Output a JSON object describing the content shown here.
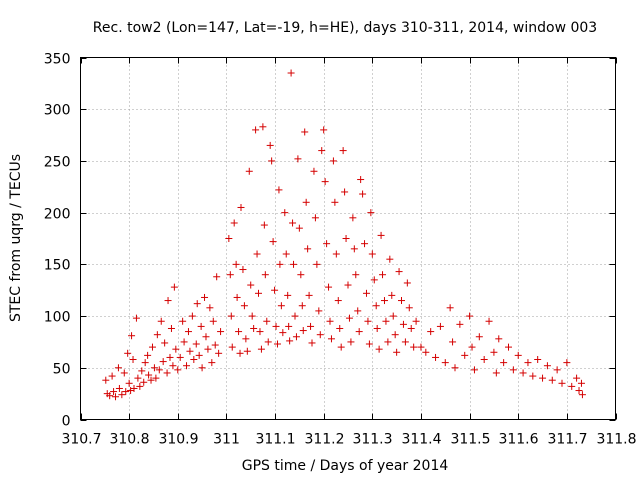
{
  "chart_data": {
    "type": "scatter",
    "title": "Rec. tow2 (Lon=147, Lat=-19, h=HE), days 310-311, 2014, window 003",
    "xlabel": "GPS time / Days of year 2014",
    "ylabel": "STEC from uqrg / TECUs",
    "xlim": [
      310.7,
      311.8
    ],
    "ylim": [
      0,
      350
    ],
    "xticks": [
      310.7,
      310.8,
      310.9,
      311.0,
      311.1,
      311.2,
      311.3,
      311.4,
      311.5,
      311.6,
      311.7,
      311.8
    ],
    "xtick_labels": [
      "310.7",
      "310.8",
      "310.9",
      "311",
      "311.1",
      "311.2",
      "311.3",
      "311.4",
      "311.5",
      "311.6",
      "311.7",
      "311.8"
    ],
    "yticks": [
      0,
      50,
      100,
      150,
      200,
      250,
      300,
      350
    ],
    "ytick_labels": [
      "0",
      "50",
      "100",
      "150",
      "200",
      "250",
      "300",
      "350"
    ],
    "grid": true,
    "marker": "+",
    "color": "#d40000",
    "series": [
      {
        "name": "STEC",
        "points": [
          [
            310.752,
            38
          ],
          [
            310.755,
            25
          ],
          [
            310.76,
            23
          ],
          [
            310.765,
            42
          ],
          [
            310.768,
            27
          ],
          [
            310.772,
            22
          ],
          [
            310.778,
            50
          ],
          [
            310.78,
            30
          ],
          [
            310.785,
            24
          ],
          [
            310.79,
            45
          ],
          [
            310.793,
            27
          ],
          [
            310.797,
            64
          ],
          [
            310.8,
            35
          ],
          [
            310.803,
            28
          ],
          [
            310.805,
            81
          ],
          [
            310.808,
            58
          ],
          [
            310.81,
            30
          ],
          [
            310.815,
            98
          ],
          [
            310.818,
            40
          ],
          [
            310.822,
            32
          ],
          [
            310.826,
            47
          ],
          [
            310.83,
            36
          ],
          [
            310.833,
            55
          ],
          [
            310.838,
            62
          ],
          [
            310.84,
            43
          ],
          [
            310.845,
            38
          ],
          [
            310.848,
            70
          ],
          [
            310.852,
            50
          ],
          [
            310.855,
            40
          ],
          [
            310.858,
            82
          ],
          [
            310.862,
            48
          ],
          [
            310.866,
            95
          ],
          [
            310.87,
            56
          ],
          [
            310.873,
            74
          ],
          [
            310.878,
            45
          ],
          [
            310.88,
            115
          ],
          [
            310.884,
            60
          ],
          [
            310.887,
            88
          ],
          [
            310.89,
            52
          ],
          [
            310.893,
            128
          ],
          [
            310.896,
            68
          ],
          [
            310.9,
            48
          ],
          [
            310.905,
            60
          ],
          [
            310.91,
            95
          ],
          [
            310.913,
            75
          ],
          [
            310.918,
            52
          ],
          [
            310.922,
            85
          ],
          [
            310.925,
            66
          ],
          [
            310.93,
            100
          ],
          [
            310.933,
            58
          ],
          [
            310.938,
            73
          ],
          [
            310.94,
            112
          ],
          [
            310.944,
            62
          ],
          [
            310.948,
            90
          ],
          [
            310.95,
            50
          ],
          [
            310.955,
            118
          ],
          [
            310.958,
            80
          ],
          [
            310.962,
            68
          ],
          [
            310.966,
            108
          ],
          [
            310.97,
            55
          ],
          [
            310.973,
            95
          ],
          [
            310.977,
            72
          ],
          [
            310.98,
            138
          ],
          [
            310.984,
            64
          ],
          [
            310.988,
            85
          ],
          [
            311.005,
            175
          ],
          [
            311.008,
            140
          ],
          [
            311.01,
            100
          ],
          [
            311.012,
            70
          ],
          [
            311.016,
            190
          ],
          [
            311.02,
            150
          ],
          [
            311.022,
            118
          ],
          [
            311.025,
            85
          ],
          [
            311.028,
            64
          ],
          [
            311.03,
            205
          ],
          [
            311.034,
            145
          ],
          [
            311.037,
            110
          ],
          [
            311.04,
            78
          ],
          [
            311.043,
            66
          ],
          [
            311.047,
            240
          ],
          [
            311.05,
            130
          ],
          [
            311.053,
            100
          ],
          [
            311.056,
            88
          ],
          [
            311.06,
            280
          ],
          [
            311.063,
            160
          ],
          [
            311.066,
            122
          ],
          [
            311.069,
            85
          ],
          [
            311.072,
            68
          ],
          [
            311.075,
            283
          ],
          [
            311.078,
            188
          ],
          [
            311.08,
            140
          ],
          [
            311.083,
            95
          ],
          [
            311.086,
            75
          ],
          [
            311.09,
            265
          ],
          [
            311.093,
            250
          ],
          [
            311.096,
            172
          ],
          [
            311.099,
            125
          ],
          [
            311.102,
            90
          ],
          [
            311.105,
            73
          ],
          [
            311.108,
            222
          ],
          [
            311.11,
            150
          ],
          [
            311.113,
            110
          ],
          [
            311.116,
            84
          ],
          [
            311.12,
            200
          ],
          [
            311.123,
            160
          ],
          [
            311.126,
            120
          ],
          [
            311.128,
            90
          ],
          [
            311.13,
            76
          ],
          [
            311.133,
            335
          ],
          [
            311.136,
            190
          ],
          [
            311.138,
            150
          ],
          [
            311.141,
            100
          ],
          [
            311.144,
            80
          ],
          [
            311.147,
            252
          ],
          [
            311.15,
            185
          ],
          [
            311.153,
            140
          ],
          [
            311.156,
            110
          ],
          [
            311.158,
            86
          ],
          [
            311.161,
            278
          ],
          [
            311.164,
            210
          ],
          [
            311.167,
            165
          ],
          [
            311.17,
            120
          ],
          [
            311.173,
            90
          ],
          [
            311.176,
            74
          ],
          [
            311.18,
            240
          ],
          [
            311.183,
            195
          ],
          [
            311.186,
            150
          ],
          [
            311.19,
            105
          ],
          [
            311.193,
            82
          ],
          [
            311.196,
            260
          ],
          [
            311.2,
            280
          ],
          [
            311.203,
            230
          ],
          [
            311.206,
            170
          ],
          [
            311.21,
            128
          ],
          [
            311.213,
            95
          ],
          [
            311.216,
            78
          ],
          [
            311.22,
            250
          ],
          [
            311.223,
            210
          ],
          [
            311.226,
            160
          ],
          [
            311.23,
            115
          ],
          [
            311.233,
            88
          ],
          [
            311.236,
            70
          ],
          [
            311.24,
            260
          ],
          [
            311.243,
            220
          ],
          [
            311.246,
            175
          ],
          [
            311.25,
            130
          ],
          [
            311.253,
            98
          ],
          [
            311.256,
            75
          ],
          [
            311.26,
            195
          ],
          [
            311.263,
            165
          ],
          [
            311.266,
            140
          ],
          [
            311.27,
            105
          ],
          [
            311.273,
            85
          ],
          [
            311.276,
            232
          ],
          [
            311.28,
            218
          ],
          [
            311.284,
            170
          ],
          [
            311.288,
            122
          ],
          [
            311.291,
            95
          ],
          [
            311.294,
            73
          ],
          [
            311.297,
            200
          ],
          [
            311.3,
            160
          ],
          [
            311.304,
            135
          ],
          [
            311.308,
            110
          ],
          [
            311.31,
            88
          ],
          [
            311.314,
            68
          ],
          [
            311.318,
            178
          ],
          [
            311.321,
            140
          ],
          [
            311.325,
            115
          ],
          [
            311.328,
            95
          ],
          [
            311.332,
            75
          ],
          [
            311.336,
            155
          ],
          [
            311.34,
            120
          ],
          [
            311.343,
            100
          ],
          [
            311.347,
            82
          ],
          [
            311.35,
            65
          ],
          [
            311.355,
            143
          ],
          [
            311.36,
            115
          ],
          [
            311.364,
            92
          ],
          [
            311.368,
            75
          ],
          [
            311.372,
            132
          ],
          [
            311.376,
            108
          ],
          [
            311.38,
            88
          ],
          [
            311.385,
            70
          ],
          [
            311.39,
            95
          ],
          [
            311.4,
            70
          ],
          [
            311.41,
            65
          ],
          [
            311.42,
            85
          ],
          [
            311.43,
            60
          ],
          [
            311.44,
            90
          ],
          [
            311.45,
            55
          ],
          [
            311.46,
            108
          ],
          [
            311.465,
            75
          ],
          [
            311.47,
            50
          ],
          [
            311.48,
            92
          ],
          [
            311.49,
            62
          ],
          [
            311.5,
            100
          ],
          [
            311.505,
            70
          ],
          [
            311.51,
            48
          ],
          [
            311.52,
            80
          ],
          [
            311.53,
            58
          ],
          [
            311.54,
            95
          ],
          [
            311.55,
            65
          ],
          [
            311.555,
            45
          ],
          [
            311.56,
            78
          ],
          [
            311.57,
            55
          ],
          [
            311.58,
            70
          ],
          [
            311.59,
            48
          ],
          [
            311.6,
            62
          ],
          [
            311.61,
            45
          ],
          [
            311.62,
            55
          ],
          [
            311.63,
            42
          ],
          [
            311.64,
            58
          ],
          [
            311.65,
            40
          ],
          [
            311.66,
            52
          ],
          [
            311.67,
            38
          ],
          [
            311.68,
            48
          ],
          [
            311.69,
            35
          ],
          [
            311.7,
            55
          ],
          [
            311.71,
            32
          ],
          [
            311.72,
            40
          ],
          [
            311.725,
            28
          ],
          [
            311.73,
            35
          ],
          [
            311.732,
            24
          ]
        ]
      }
    ]
  }
}
